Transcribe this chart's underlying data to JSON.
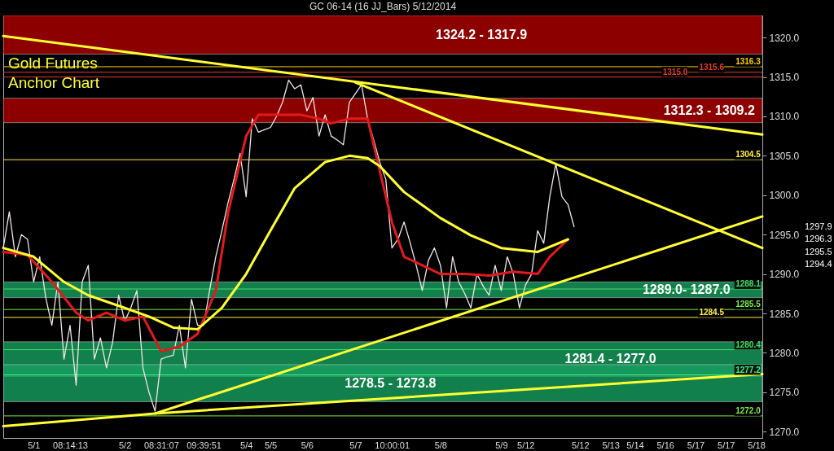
{
  "chart_data": {
    "type": "line",
    "title": "GC 06-14 (16 JJ_Bars)  5/12/2014",
    "annotations": [
      "Gold Futures\nAnchor Chart",
      "1297.9",
      "1296.3",
      "1295.5",
      "1294.4"
    ],
    "categories": [
      null,
      null,
      null,
      null,
      null,
      "5/1",
      null,
      null,
      null,
      null,
      null,
      "08:14:13",
      null,
      null,
      null,
      null,
      null,
      null,
      null,
      null,
      "5/2",
      null,
      null,
      null,
      null,
      null,
      "08:31:07",
      null,
      null,
      null,
      null,
      null,
      null,
      "09:39:51",
      null,
      null,
      null,
      null,
      null,
      null,
      "5/4",
      null,
      null,
      null,
      "5/5",
      null,
      null,
      null,
      null,
      null,
      "5/6",
      null,
      null,
      null,
      null,
      null,
      null,
      null,
      "5/7",
      null,
      null,
      null,
      null,
      null,
      "10:00:01",
      null,
      null,
      null,
      null,
      null,
      null,
      null,
      "5/8",
      null,
      null,
      null,
      null,
      null,
      null,
      null,
      null,
      null,
      "5/9",
      null,
      null,
      null,
      "5/12",
      null,
      null,
      null,
      null,
      null,
      null,
      null,
      null,
      "5/12",
      null,
      null,
      null,
      null,
      "5/13",
      null,
      null,
      null,
      "5/14",
      null,
      null,
      null,
      null,
      "5/16",
      null,
      null,
      null,
      null,
      "5/17",
      null,
      null,
      null,
      null,
      "5/17",
      null,
      null,
      null,
      null,
      "5/18",
      null
    ],
    "series": [
      {
        "color": "#f2e6e6",
        "values": [
          1293.3,
          1297.9,
          1292.2,
          1295.0,
          1294.4,
          1289.0,
          1292.2,
          1287.0,
          1283.5,
          1289.0,
          1279.2,
          1283.5,
          1275.9,
          1289.0,
          1291.1,
          1279.2,
          1281.9,
          1278.1,
          1281.3,
          1287.3,
          1284.0,
          1285.7,
          1287.9,
          1278.1,
          1275.0,
          1272.6,
          1279.2,
          1279.5,
          1279.7,
          1283.5,
          1278.1,
          1286.8,
          1283.5,
          1283.5,
          1288.0,
          1292.2,
          1295.5,
          1299.0,
          1302.0,
          1305.3,
          1299.8,
          1309.7,
          1308.0,
          1308.3,
          1308.6,
          1310.0,
          1311.8,
          1314.6,
          1313.5,
          1314.0,
          1310.7,
          1312.4,
          1307.5,
          1310.2,
          1307.5,
          1307.0,
          1306.4,
          1311.8,
          1312.9,
          1314.0,
          1309.7,
          1307.0,
          1304.2,
          1302.0,
          1293.3,
          1294.4,
          1296.6,
          1294.0,
          1291.1,
          1287.9,
          1291.7,
          1293.3,
          1291.1,
          1285.7,
          1292.2,
          1289.0,
          1287.5,
          1285.7,
          1290.0,
          1288.5,
          1287.3,
          1291.1,
          1287.9,
          1292.2,
          1290.0,
          1285.7,
          1288.6,
          1290.0,
          1295.5,
          1293.9,
          1299.8,
          1304.0,
          1299.8,
          1298.8,
          1296.0,
          null,
          null,
          null,
          null,
          null,
          null,
          null,
          null,
          null,
          null,
          null,
          null,
          null,
          null,
          null,
          null,
          null,
          null,
          null,
          null,
          null,
          null,
          null,
          null,
          null,
          null,
          null,
          null,
          null,
          null,
          null
        ]
      },
      {
        "color": "#e31a1c",
        "values": [
          1292.8,
          null,
          null,
          null,
          1292.4,
          null,
          null,
          null,
          1289.0,
          null,
          null,
          null,
          1285.1,
          null,
          1284.1,
          null,
          null,
          1285.1,
          null,
          null,
          1284.1,
          null,
          null,
          1284.6,
          null,
          null,
          1280.2,
          null,
          null,
          1280.8,
          null,
          null,
          1282.4,
          null,
          null,
          1287.9,
          null,
          1297.7,
          null,
          null,
          1307.5,
          null,
          1310.2,
          null,
          null,
          null,
          1310.2,
          null,
          null,
          1310.2,
          null,
          null,
          1309.7,
          null,
          1309.1,
          null,
          null,
          1309.7,
          null,
          null,
          1309.7,
          null,
          1303.1,
          null,
          1296.6,
          null,
          1292.2,
          null,
          null,
          1291.1,
          null,
          null,
          1290.0,
          null,
          null,
          null,
          1290.0,
          null,
          null,
          null,
          1289.8,
          null,
          null,
          null,
          1290.3,
          null,
          null,
          null,
          1290.0,
          null,
          1292.2,
          null,
          null,
          1294.4,
          null,
          null,
          null,
          null,
          null,
          null,
          null,
          null,
          null,
          null,
          null,
          null,
          null,
          null,
          null,
          null,
          null,
          null,
          null,
          null,
          null,
          null,
          null,
          null,
          null,
          null,
          null,
          null,
          null,
          null,
          null,
          null
        ]
      },
      {
        "color": "#ffff33",
        "values": [
          1293.3,
          null,
          null,
          null,
          null,
          1292.2,
          null,
          null,
          null,
          null,
          1289.0,
          null,
          null,
          null,
          1287.3,
          null,
          null,
          null,
          null,
          null,
          1285.7,
          null,
          null,
          null,
          1284.6,
          null,
          null,
          null,
          1283.2,
          null,
          null,
          null,
          1283.0,
          null,
          null,
          null,
          1285.7,
          null,
          null,
          null,
          1290.0,
          null,
          null,
          null,
          1295.5,
          null,
          null,
          null,
          1300.9,
          null,
          null,
          null,
          null,
          1304.2,
          null,
          null,
          null,
          1305.0,
          null,
          null,
          1304.7,
          null,
          1303.7,
          null,
          null,
          null,
          1300.4,
          null,
          null,
          null,
          null,
          null,
          1297.1,
          null,
          null,
          null,
          null,
          1294.9,
          null,
          null,
          null,
          null,
          1293.3,
          null,
          null,
          null,
          null,
          null,
          1292.8,
          null,
          null,
          null,
          null,
          1294.4,
          null,
          null,
          null,
          null,
          null,
          null,
          null,
          null,
          null,
          null,
          null,
          null,
          null,
          null,
          null,
          null,
          null,
          null,
          null,
          null,
          null,
          null,
          null,
          null,
          null,
          null,
          null,
          null,
          null,
          null,
          null,
          null
        ]
      },
      {
        "color": "#ffff33",
        "values": [
          1320.2,
          null,
          null,
          null,
          null,
          null,
          null,
          null,
          null,
          null,
          null,
          null,
          null,
          null,
          null,
          null,
          null,
          null,
          null,
          null,
          null,
          null,
          null,
          null,
          null,
          null,
          null,
          null,
          null,
          null,
          null,
          null,
          null,
          null,
          null,
          null,
          null,
          null,
          null,
          null,
          null,
          null,
          null,
          null,
          null,
          null,
          null,
          null,
          null,
          null,
          null,
          null,
          null,
          null,
          null,
          null,
          null,
          null,
          null,
          null,
          null,
          null,
          null,
          null,
          null,
          null,
          null,
          null,
          null,
          null,
          null,
          null,
          null,
          null,
          null,
          null,
          null,
          null,
          null,
          null,
          null,
          null,
          null,
          null,
          null,
          null,
          null,
          null,
          null,
          null,
          null,
          null,
          null,
          null,
          null,
          null,
          null,
          null,
          null,
          null,
          null,
          null,
          null,
          null,
          null,
          null,
          null,
          null,
          null,
          null,
          null,
          null,
          null,
          null,
          null,
          null,
          null,
          null,
          null,
          null,
          null,
          null,
          null,
          null,
          null,
          1307.7
        ]
      },
      {
        "color": "#ffff33",
        "values": [
          null,
          null,
          null,
          null,
          null,
          null,
          null,
          null,
          null,
          null,
          null,
          null,
          null,
          null,
          null,
          null,
          null,
          null,
          null,
          null,
          null,
          null,
          null,
          null,
          null,
          null,
          null,
          null,
          null,
          null,
          null,
          null,
          null,
          null,
          null,
          null,
          null,
          null,
          null,
          null,
          null,
          null,
          null,
          null,
          null,
          null,
          null,
          null,
          null,
          null,
          null,
          null,
          null,
          null,
          null,
          null,
          null,
          null,
          1314.3,
          null,
          null,
          null,
          null,
          null,
          null,
          null,
          null,
          null,
          null,
          null,
          null,
          null,
          null,
          null,
          null,
          null,
          null,
          null,
          null,
          null,
          null,
          null,
          null,
          null,
          null,
          null,
          null,
          null,
          null,
          null,
          null,
          null,
          null,
          null,
          null,
          null,
          null,
          null,
          null,
          null,
          null,
          null,
          null,
          null,
          null,
          null,
          null,
          null,
          null,
          null,
          null,
          null,
          null,
          null,
          null,
          null,
          null,
          null,
          null,
          null,
          null,
          null,
          null,
          null,
          null,
          1293.3
        ]
      },
      {
        "color": "#ffff33",
        "values": [
          null,
          null,
          null,
          null,
          null,
          null,
          null,
          null,
          null,
          null,
          null,
          null,
          null,
          null,
          null,
          null,
          null,
          null,
          null,
          null,
          null,
          null,
          null,
          null,
          null,
          1272.3,
          null,
          null,
          null,
          null,
          null,
          null,
          null,
          null,
          null,
          null,
          null,
          null,
          null,
          null,
          null,
          null,
          null,
          null,
          null,
          null,
          null,
          null,
          null,
          null,
          null,
          null,
          null,
          null,
          null,
          null,
          null,
          null,
          null,
          null,
          null,
          null,
          null,
          null,
          null,
          null,
          null,
          null,
          null,
          null,
          null,
          null,
          null,
          null,
          null,
          null,
          null,
          null,
          null,
          null,
          null,
          null,
          null,
          null,
          null,
          null,
          null,
          null,
          null,
          null,
          null,
          null,
          null,
          null,
          null,
          null,
          null,
          null,
          null,
          null,
          null,
          null,
          null,
          null,
          null,
          null,
          null,
          null,
          null,
          null,
          null,
          null,
          null,
          null,
          null,
          null,
          null,
          null,
          null,
          null,
          null,
          null,
          null,
          null,
          null,
          1297.3
        ]
      },
      {
        "color": "#ffff33",
        "values": [
          1270.7,
          null,
          null,
          null,
          null,
          null,
          null,
          null,
          null,
          null,
          null,
          null,
          null,
          null,
          null,
          null,
          null,
          null,
          null,
          null,
          null,
          null,
          null,
          null,
          null,
          1272.3,
          null,
          null,
          null,
          null,
          null,
          null,
          null,
          null,
          null,
          null,
          null,
          null,
          null,
          null,
          null,
          null,
          null,
          null,
          null,
          null,
          null,
          null,
          null,
          null,
          null,
          null,
          null,
          null,
          null,
          null,
          null,
          null,
          null,
          null,
          null,
          null,
          null,
          null,
          null,
          null,
          null,
          null,
          null,
          null,
          null,
          null,
          null,
          null,
          null,
          null,
          null,
          null,
          null,
          null,
          null,
          null,
          null,
          null,
          null,
          null,
          null,
          null,
          null,
          null,
          null,
          null,
          null,
          null,
          null,
          null,
          null,
          null,
          null,
          null,
          null,
          null,
          null,
          null,
          null,
          null,
          null,
          null,
          null,
          null,
          null,
          null,
          null,
          null,
          null,
          null,
          null,
          null,
          null,
          null,
          null,
          null,
          null,
          null,
          null,
          1277.3
        ]
      }
    ],
    "bands": [
      {
        "axis": "y",
        "from": 1317.9,
        "to": 1324.2,
        "label": "1324.2 - 1317.9",
        "color": "#b00000"
      },
      {
        "axis": "y",
        "from": 1309.2,
        "to": 1312.3,
        "label": "1312.3 - 1309.2",
        "color": "#b00000"
      },
      {
        "axis": "y",
        "from": 1287.0,
        "to": 1289.0,
        "label": "1289.0- 1287.0",
        "color": "#17a060"
      },
      {
        "axis": "y",
        "from": 1277.0,
        "to": 1281.4,
        "label": "1281.4 - 1277.0",
        "color": "#17a060"
      },
      {
        "axis": "y",
        "from": 1273.8,
        "to": 1278.5,
        "label": "1278.5 - 1273.8",
        "color": "#17a060"
      }
    ],
    "ref_lines": [
      {
        "axis": "y",
        "value": 1316.3,
        "label": "1316.3",
        "color": "#ffcc00"
      },
      {
        "axis": "y",
        "value": 1315.6,
        "label": "1315.6",
        "color": "#e33b2e"
      },
      {
        "axis": "y",
        "value": 1315.0,
        "label": "1315.0",
        "color": "#e33b2e"
      },
      {
        "axis": "y",
        "value": 1304.5,
        "label": "1304.5",
        "color": "#ffee44"
      },
      {
        "axis": "y",
        "value": 1288.1,
        "label": "1288.1",
        "color": "#44dd66"
      },
      {
        "axis": "y",
        "value": 1285.5,
        "label": "1285.5",
        "color": "#77ee44"
      },
      {
        "axis": "y",
        "value": 1284.5,
        "label": "1284.5",
        "color": "#ffee44"
      },
      {
        "axis": "y",
        "value": 1280.4,
        "label": "1280.4",
        "color": "#44dd66"
      },
      {
        "axis": "y",
        "value": 1277.2,
        "label": "1277.2",
        "color": "#44ee88"
      },
      {
        "axis": "y",
        "value": 1272.0,
        "label": "1272.0",
        "color": "#77ee44"
      }
    ],
    "ylim": [
      1269.2,
      1322.8
    ],
    "yticks": [
      {
        "value": 1270,
        "label": "1270.0"
      },
      {
        "value": 1275,
        "label": "1275.0"
      },
      {
        "value": 1280,
        "label": "1280.0"
      },
      {
        "value": 1285,
        "label": "1285.0"
      },
      {
        "value": 1290,
        "label": "1290.0"
      },
      {
        "value": 1295,
        "label": "1295.0"
      },
      {
        "value": 1300,
        "label": "1300.0"
      },
      {
        "value": 1305,
        "label": "1305.0"
      },
      {
        "value": 1310,
        "label": "1310.0"
      },
      {
        "value": 1315,
        "label": "1315.0"
      },
      {
        "value": 1320,
        "label": "1320.0"
      }
    ],
    "grid": false,
    "marker": "none",
    "line_style": "solid"
  }
}
